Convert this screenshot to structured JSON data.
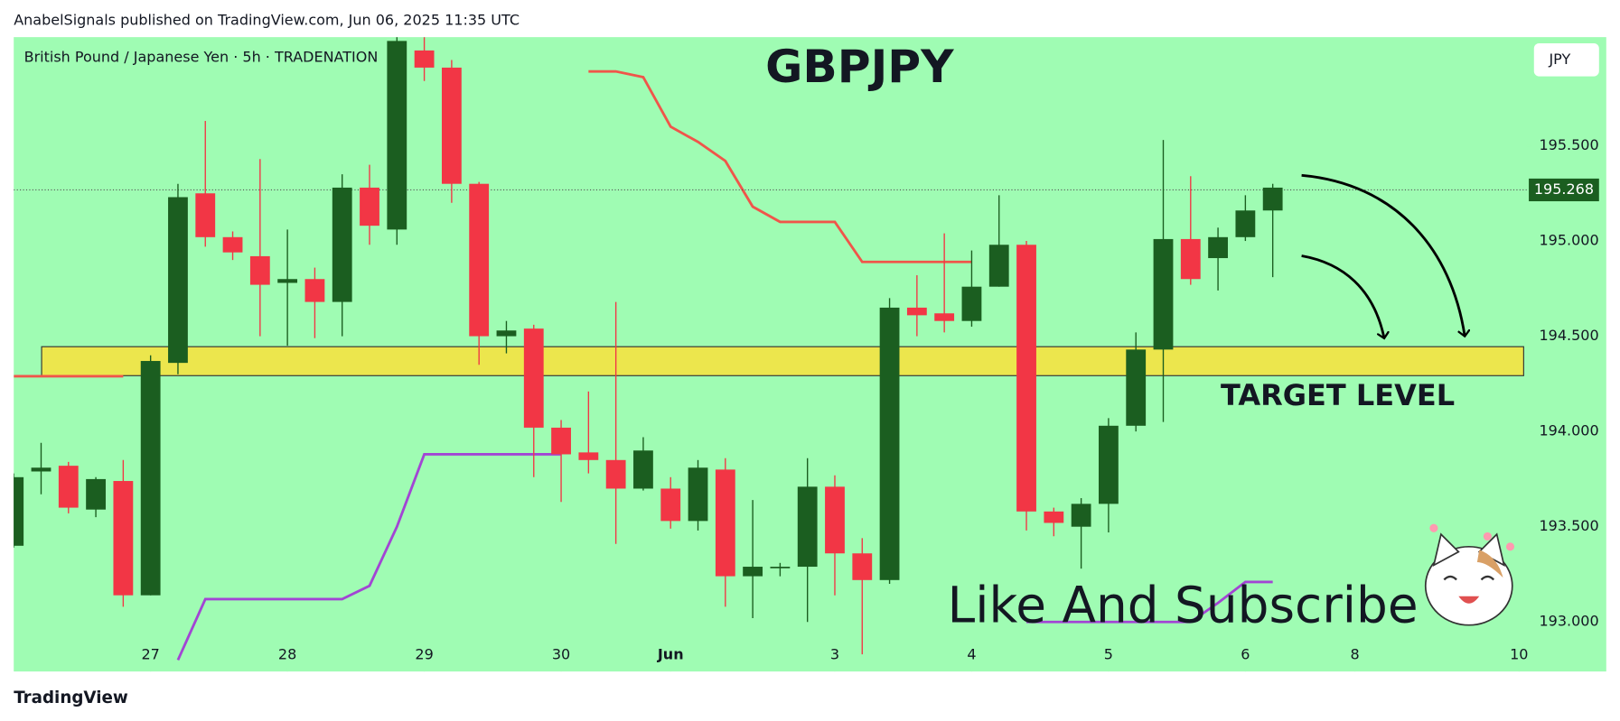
{
  "header": "AnabelSignals published on TradingView.com, Jun 06, 2025 11:35 UTC",
  "footer": "TradingView",
  "chart_data": {
    "type": "candlestick",
    "symbol_info": "British Pound / Japanese Yen · 5h · TRADENATION",
    "title": "GBPJPY",
    "currency": "JPY",
    "last_price": 195.268,
    "up_color": "#1b5e20",
    "down_color": "#f23645",
    "x": [
      0,
      1,
      2,
      3,
      4,
      5,
      6,
      7,
      8,
      9,
      10,
      11,
      12,
      13,
      14,
      15,
      16,
      17,
      18,
      19,
      20,
      21,
      22,
      23,
      24,
      25,
      26,
      27,
      28,
      29,
      30,
      31,
      32,
      33,
      34,
      35,
      36,
      37,
      38,
      39,
      40,
      41,
      42,
      43,
      44,
      45,
      46
    ],
    "open": [
      193.4,
      193.79,
      193.82,
      193.59,
      193.74,
      193.14,
      194.36,
      195.25,
      195.02,
      194.92,
      194.78,
      194.8,
      194.68,
      195.28,
      195.06,
      196.0,
      195.91,
      195.3,
      194.5,
      194.54,
      194.02,
      193.89,
      193.85,
      193.7,
      193.7,
      193.53,
      193.8,
      193.24,
      193.29,
      193.29,
      193.71,
      193.36,
      193.22,
      194.65,
      194.62,
      194.58,
      194.76,
      194.98,
      193.58,
      193.5,
      193.62,
      194.03,
      194.43,
      195.01,
      194.91,
      195.02,
      195.16
    ],
    "high": [
      193.78,
      193.94,
      193.84,
      193.76,
      193.85,
      194.4,
      195.3,
      195.63,
      195.05,
      195.43,
      195.06,
      194.86,
      195.35,
      195.4,
      196.07,
      196.07,
      195.95,
      195.31,
      194.58,
      194.56,
      194.06,
      194.21,
      194.68,
      193.97,
      193.76,
      193.85,
      193.86,
      193.64,
      193.31,
      193.86,
      193.77,
      193.44,
      194.7,
      194.82,
      195.04,
      194.95,
      195.24,
      195.0,
      193.6,
      193.65,
      194.07,
      194.52,
      195.53,
      195.34,
      195.07,
      195.24,
      195.3
    ],
    "low": [
      193.39,
      193.67,
      193.57,
      193.55,
      193.08,
      193.14,
      194.3,
      194.97,
      194.9,
      194.5,
      194.45,
      194.49,
      194.5,
      194.98,
      194.98,
      195.84,
      195.2,
      194.35,
      194.41,
      193.76,
      193.63,
      193.78,
      193.41,
      193.69,
      193.49,
      193.48,
      193.08,
      193.02,
      193.24,
      193.0,
      193.14,
      192.83,
      193.2,
      194.5,
      194.52,
      194.55,
      194.76,
      193.48,
      193.45,
      193.28,
      193.47,
      194.0,
      194.05,
      194.77,
      194.74,
      195.0,
      194.81
    ],
    "close": [
      193.76,
      193.81,
      193.6,
      193.75,
      193.14,
      194.37,
      195.23,
      195.02,
      194.94,
      194.77,
      194.8,
      194.68,
      195.28,
      195.08,
      196.05,
      195.91,
      195.3,
      194.5,
      194.53,
      194.02,
      193.88,
      193.85,
      193.7,
      193.9,
      193.53,
      193.81,
      193.24,
      193.29,
      193.29,
      193.71,
      193.36,
      193.22,
      194.65,
      194.61,
      194.58,
      194.76,
      194.98,
      193.58,
      193.52,
      193.62,
      194.03,
      194.43,
      195.01,
      194.8,
      195.02,
      195.16,
      195.28
    ],
    "lines": [
      {
        "color": "#f0554a",
        "values": [
          194.29,
          194.29,
          194.29,
          194.29,
          194.29,
          null,
          null,
          null,
          null,
          null,
          null,
          null,
          null,
          null,
          null,
          null,
          null,
          null,
          null,
          null,
          null,
          195.89,
          195.89,
          195.86,
          195.6,
          195.52,
          195.42,
          195.18,
          195.1,
          195.1,
          195.1,
          194.89,
          194.89,
          194.89,
          194.89,
          194.89,
          null,
          null,
          null,
          null,
          null,
          null,
          null,
          null,
          null,
          null,
          null
        ]
      },
      {
        "color": "#a245d4",
        "values": [
          null,
          null,
          null,
          null,
          null,
          null,
          192.8,
          193.12,
          193.12,
          193.12,
          193.12,
          193.12,
          193.12,
          193.19,
          193.5,
          193.88,
          193.88,
          193.88,
          193.88,
          193.88,
          193.88,
          null,
          null,
          null,
          null,
          null,
          null,
          null,
          null,
          null,
          null,
          null,
          null,
          null,
          null,
          null,
          null,
          193.0,
          193.0,
          193.0,
          193.0,
          193.0,
          193.0,
          193.0,
          193.1,
          193.21,
          193.21
        ]
      }
    ],
    "zone": {
      "low": 194.293,
      "high": 194.445,
      "color": "#ffe033"
    },
    "annotations": [
      "TARGET LEVEL",
      "Like And Subscribe"
    ],
    "xlim": [
      0,
      55.28
    ],
    "ylim": [
      192.74,
      196.07
    ],
    "xticks": [
      {
        "value": 5,
        "label": "27"
      },
      {
        "value": 10,
        "label": "28"
      },
      {
        "value": 15,
        "label": "29"
      },
      {
        "value": 20,
        "label": "30"
      },
      {
        "value": 24,
        "label": "Jun"
      },
      {
        "value": 30,
        "label": "3"
      },
      {
        "value": 35,
        "label": "4"
      },
      {
        "value": 40,
        "label": "5"
      },
      {
        "value": 45,
        "label": "6"
      },
      {
        "value": 49,
        "label": "8"
      },
      {
        "value": 55,
        "label": "10"
      }
    ],
    "yticks": [
      {
        "value": 193,
        "label": "193.000"
      },
      {
        "value": 193.5,
        "label": "193.500"
      },
      {
        "value": 194,
        "label": "194.000"
      },
      {
        "value": 194.5,
        "label": "194.500"
      },
      {
        "value": 195,
        "label": "195.000"
      },
      {
        "value": 195.5,
        "label": "195.500"
      }
    ]
  }
}
